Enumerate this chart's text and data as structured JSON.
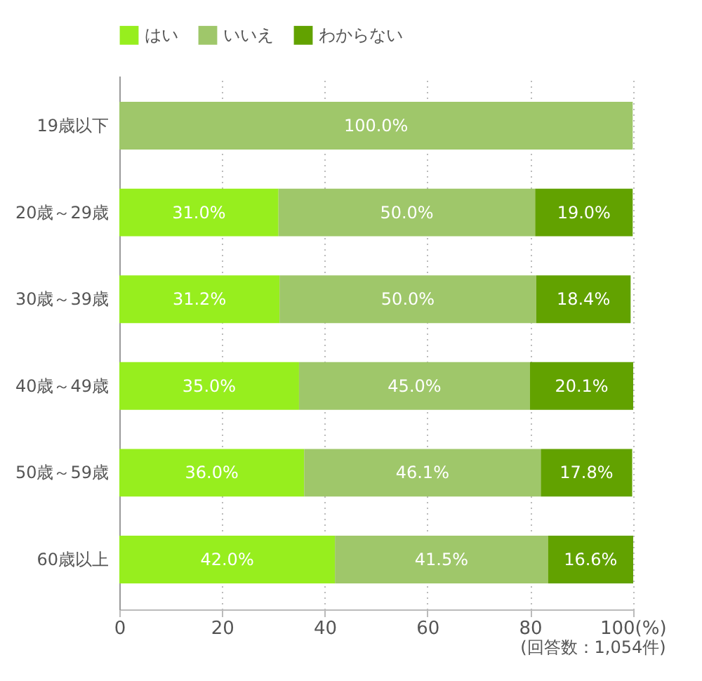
{
  "chart_data": {
    "type": "bar",
    "orientation": "horizontal",
    "stacked": true,
    "categories": [
      "19歳以下",
      "20歳～29歳",
      "30歳～39歳",
      "40歳～49歳",
      "50歳～59歳",
      "60歳以上"
    ],
    "series": [
      {
        "name": "はい",
        "color": "#97ee1e",
        "values": [
          0,
          31.0,
          31.2,
          35.0,
          36.0,
          42.0
        ],
        "value_labels": [
          null,
          "31.0%",
          "31.2%",
          "35.0%",
          "36.0%",
          "42.0%"
        ]
      },
      {
        "name": "いいえ",
        "color": "#9fc76a",
        "values": [
          100.0,
          50.0,
          50.0,
          45.0,
          46.1,
          41.5
        ],
        "value_labels": [
          "100.0%",
          "50.0%",
          "50.0%",
          "45.0%",
          "46.1%",
          "41.5%"
        ]
      },
      {
        "name": "わからない",
        "color": "#62a200",
        "values": [
          0,
          19.0,
          18.4,
          20.1,
          17.8,
          16.6
        ],
        "value_labels": [
          null,
          "19.0%",
          "18.4%",
          "20.1%",
          "17.8%",
          "16.6%"
        ]
      }
    ],
    "xlim": [
      0,
      100.1
    ],
    "xticks": [
      0,
      20,
      40,
      60,
      80,
      {
        "value": 100,
        "label": "100(%)"
      }
    ],
    "grid": "x",
    "legend": "top left",
    "annotations": [
      "(回答数：1,054件)"
    ]
  }
}
